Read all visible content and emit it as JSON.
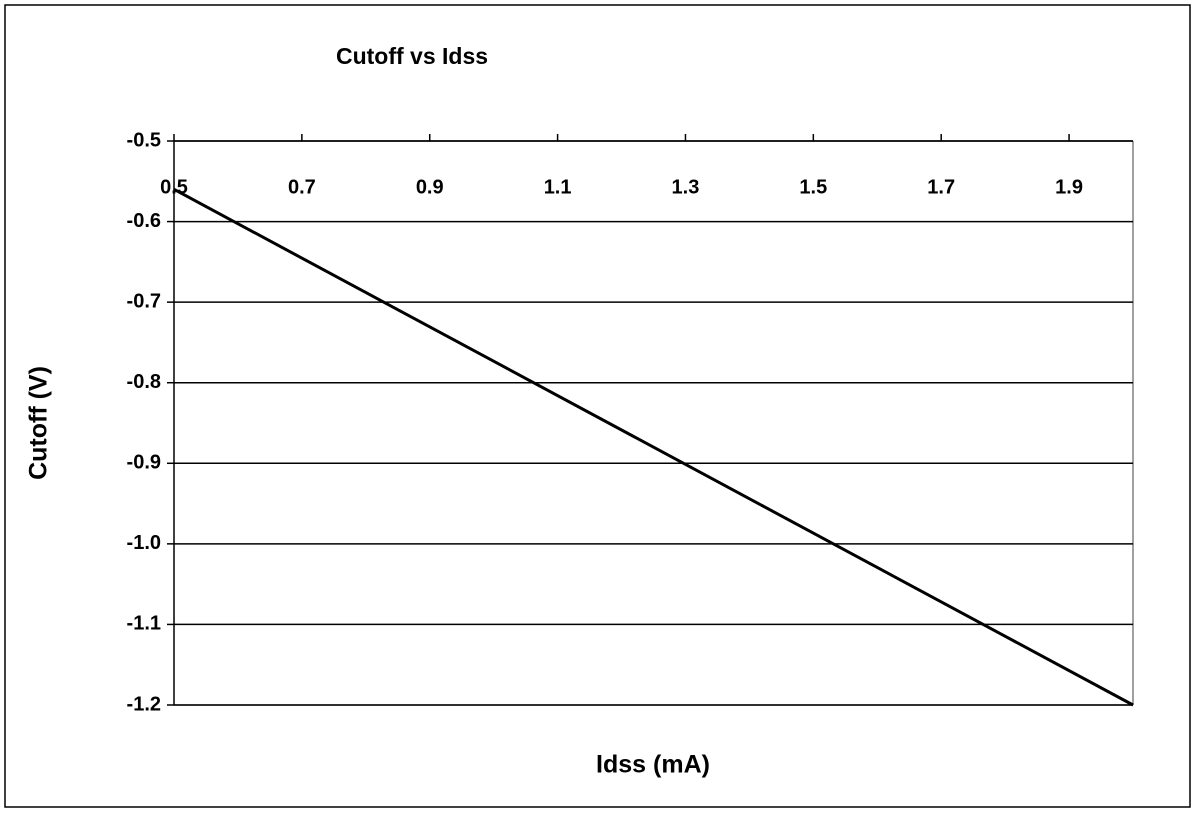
{
  "chart_data": {
    "type": "line",
    "title": "Cutoff vs Idss",
    "x_label": "Idss (mA)",
    "y_label": "Cutoff (V)",
    "x": [
      0.5,
      2.0
    ],
    "series": [
      {
        "name": "Cutoff",
        "color": "#000000",
        "values": [
          -0.56,
          -1.2
        ]
      }
    ],
    "xlim": [
      0.5,
      2.0
    ],
    "xticks": [
      0.5,
      0.7,
      0.9,
      1.1,
      1.3,
      1.5,
      1.7,
      1.9
    ],
    "ylim": [
      -1.2,
      -0.5
    ],
    "yticks": [
      -0.5,
      -0.6,
      -0.7,
      -0.8,
      -0.9,
      {
        "value": -1,
        "label": "-1.0"
      },
      -1.1,
      -1.2
    ],
    "grid": true
  }
}
